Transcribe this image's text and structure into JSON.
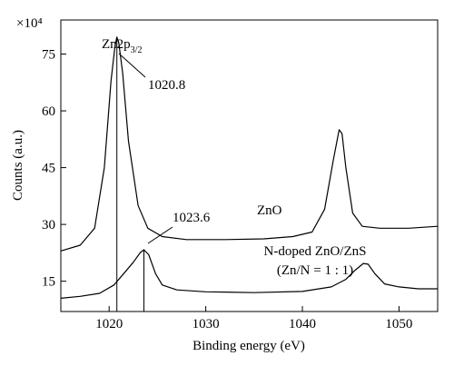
{
  "chart_data": {
    "type": "line",
    "xlabel": "Binding energy (eV)",
    "ylabel": "Counts (a.u.)",
    "y_multiplier": "×10⁴",
    "xlim": [
      1015,
      1054
    ],
    "ylim": [
      7,
      84
    ],
    "x_ticks": [
      1020,
      1030,
      1040,
      1050
    ],
    "y_ticks": [
      15,
      30,
      45,
      60,
      75
    ],
    "grid": false,
    "series": [
      {
        "name": "ZnO",
        "x": [
          1015,
          1017,
          1018.5,
          1019.5,
          1020.2,
          1020.6,
          1020.8,
          1021.0,
          1021.4,
          1022,
          1023,
          1024,
          1025.5,
          1028,
          1032,
          1036,
          1039,
          1041,
          1042.3,
          1043.2,
          1043.8,
          1044.1,
          1044.5,
          1045.2,
          1046.2,
          1048,
          1051,
          1054
        ],
        "y": [
          23,
          24.5,
          29,
          45,
          68,
          77,
          79.5,
          78,
          70,
          52,
          35,
          29,
          26.8,
          26,
          26,
          26.2,
          26.8,
          28,
          34,
          47,
          55,
          54,
          45,
          33,
          29.5,
          29,
          29,
          29.5
        ]
      },
      {
        "name": "N-doped ZnO/ZnS (Zn/N = 1 : 1)",
        "x": [
          1015,
          1017,
          1019,
          1020.5,
          1021.5,
          1022.5,
          1023.2,
          1023.6,
          1024.1,
          1024.8,
          1025.5,
          1027,
          1030,
          1035,
          1040,
          1043,
          1044.5,
          1045.5,
          1046.3,
          1046.8,
          1047.5,
          1048.5,
          1050,
          1052,
          1054
        ],
        "y": [
          10.5,
          11,
          11.8,
          14,
          17,
          20,
          22.5,
          23.3,
          22,
          17,
          14,
          12.7,
          12.2,
          12,
          12.3,
          13.5,
          15.5,
          18,
          19.7,
          19.5,
          17,
          14.3,
          13.5,
          13,
          13
        ]
      }
    ],
    "markers": [
      {
        "x": 1020.8,
        "label": "1020.8"
      },
      {
        "x": 1023.6,
        "label": "1023.6"
      }
    ],
    "annotations": {
      "zn2p_main": "Zn2p",
      "zn2p_sub": "3/2",
      "znO_label": "ZnO",
      "doped_line1": "N-doped ZnO/ZnS",
      "doped_line2": "(Zn/N = 1 : 1)"
    }
  }
}
